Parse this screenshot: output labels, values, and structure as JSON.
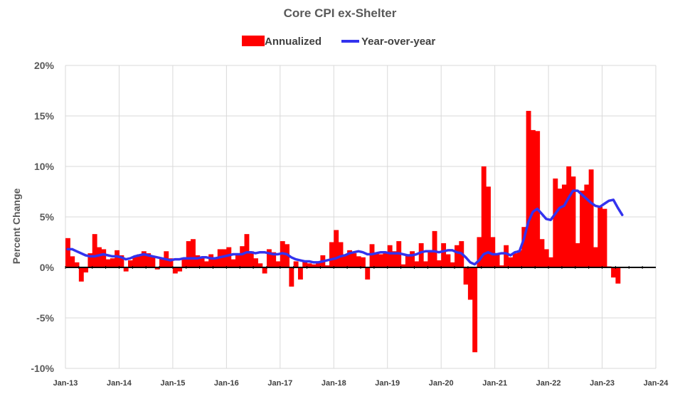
{
  "chart_data": {
    "type": "bar+line",
    "title": "Core CPI ex-Shelter",
    "ylabel": "Percent Change",
    "xlabel": "",
    "ylim": [
      -10,
      20
    ],
    "yticks": [
      -10,
      -5,
      0,
      5,
      10,
      15,
      20
    ],
    "ytick_labels": [
      "-10%",
      "-5%",
      "0%",
      "5%",
      "10%",
      "15%",
      "20%"
    ],
    "xticks": [
      "Jan-13",
      "Jan-14",
      "Jan-15",
      "Jan-16",
      "Jan-17",
      "Jan-18",
      "Jan-19",
      "Jan-20",
      "Jan-21",
      "Jan-22",
      "Jan-23",
      "Jan-24"
    ],
    "start_month": "Jan-13",
    "grid": true,
    "legend_position": "top-center",
    "colors": {
      "bars": "#ff0000",
      "line": "#3333ee",
      "zero_line": "#000000"
    },
    "series": [
      {
        "name": "Annualized",
        "type": "bar",
        "values": [
          2.9,
          1.1,
          0.5,
          -1.4,
          -0.5,
          1.4,
          3.3,
          2.0,
          1.8,
          0.8,
          0.9,
          1.7,
          1.2,
          -0.4,
          0.7,
          1.1,
          1.3,
          1.6,
          1.4,
          1.1,
          -0.2,
          0.9,
          1.6,
          0.9,
          -0.6,
          -0.4,
          0.9,
          2.6,
          2.8,
          1.2,
          1.0,
          0.6,
          1.3,
          0.9,
          1.8,
          1.8,
          2.0,
          0.8,
          1.3,
          2.1,
          3.3,
          1.6,
          0.9,
          0.4,
          -0.6,
          1.8,
          1.5,
          0.6,
          2.6,
          2.3,
          -1.9,
          0.6,
          -1.2,
          0.6,
          0.4,
          0.3,
          0.5,
          1.2,
          0.2,
          2.5,
          3.7,
          2.5,
          1.3,
          1.7,
          1.4,
          1.1,
          1.0,
          -1.2,
          2.3,
          1.4,
          1.3,
          1.5,
          2.2,
          1.6,
          2.6,
          0.3,
          1.2,
          1.6,
          0.6,
          2.4,
          0.6,
          1.5,
          3.6,
          0.7,
          2.4,
          1.3,
          0.5,
          2.2,
          2.6,
          -1.7,
          -3.2,
          -8.4,
          3.0,
          10.0,
          8.0,
          3.0,
          1.3,
          0.2,
          2.2,
          1.0,
          1.4,
          1.7,
          4.0,
          15.5,
          13.6,
          13.5,
          2.8,
          1.8,
          1.0,
          8.8,
          7.8,
          8.2,
          10.0,
          9.0,
          2.4,
          7.6,
          8.2,
          9.7,
          2.0,
          6.0,
          5.8,
          0.1,
          -1.0,
          -1.6
        ]
      },
      {
        "name": "Year-over-year",
        "type": "line",
        "values": [
          1.8,
          1.8,
          1.6,
          1.4,
          1.2,
          1.1,
          1.1,
          1.2,
          1.3,
          1.2,
          1.1,
          1.1,
          1.0,
          0.8,
          0.9,
          1.1,
          1.2,
          1.3,
          1.2,
          1.1,
          1.0,
          0.9,
          0.8,
          0.7,
          0.8,
          0.8,
          0.9,
          0.9,
          0.9,
          0.9,
          1.0,
          1.0,
          0.9,
          0.9,
          1.0,
          1.1,
          1.2,
          1.3,
          1.3,
          1.3,
          1.5,
          1.5,
          1.4,
          1.5,
          1.5,
          1.4,
          1.3,
          1.3,
          1.4,
          1.3,
          1.0,
          0.8,
          0.7,
          0.6,
          0.6,
          0.5,
          0.5,
          0.6,
          0.7,
          0.8,
          0.9,
          1.1,
          1.2,
          1.4,
          1.5,
          1.6,
          1.5,
          1.3,
          1.3,
          1.4,
          1.5,
          1.5,
          1.4,
          1.4,
          1.4,
          1.3,
          1.2,
          1.2,
          1.3,
          1.5,
          1.6,
          1.6,
          1.6,
          1.5,
          1.6,
          1.7,
          1.7,
          1.5,
          1.4,
          1.0,
          0.5,
          0.3,
          0.7,
          1.3,
          1.5,
          1.3,
          1.3,
          1.4,
          1.4,
          1.2,
          1.5,
          1.6,
          2.8,
          4.5,
          5.5,
          5.8,
          5.3,
          4.8,
          4.7,
          5.3,
          5.9,
          6.1,
          6.9,
          7.6,
          7.6,
          7.2,
          6.8,
          6.4,
          6.1,
          6.0,
          6.3,
          6.6,
          6.7,
          5.9,
          5.2
        ]
      }
    ]
  }
}
